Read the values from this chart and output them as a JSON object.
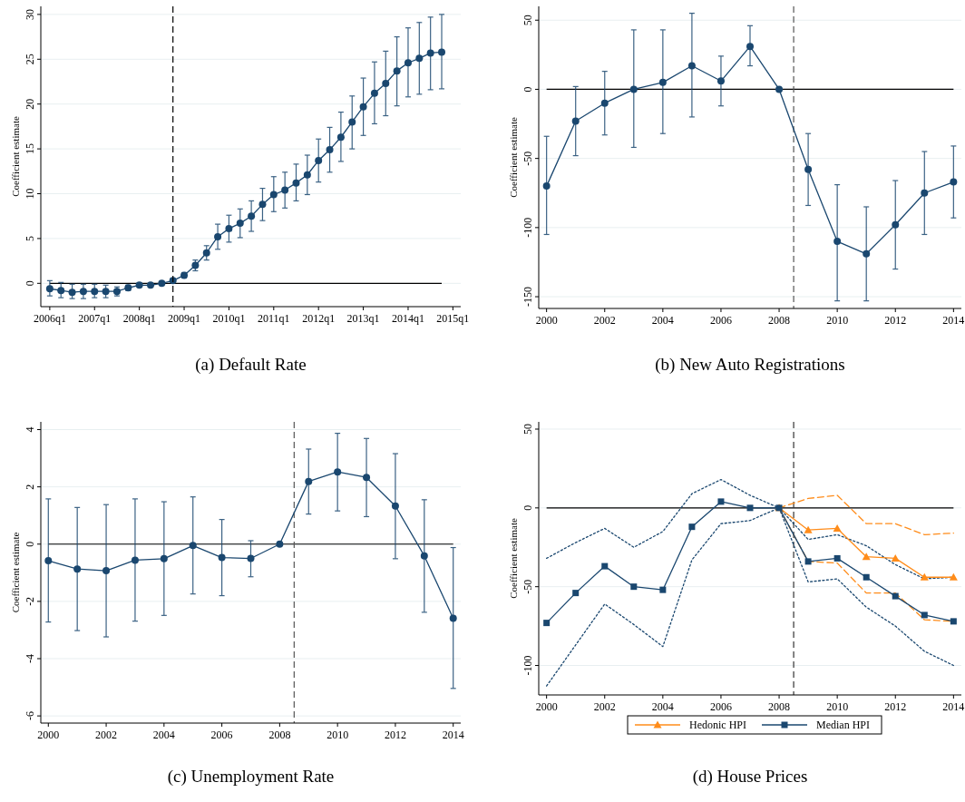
{
  "chart_data": [
    {
      "type": "line",
      "title": "(a) Default Rate",
      "ylabel": "Coefficient estimate",
      "marker": "circle",
      "grid": "y",
      "categories": [
        "2006q1",
        null,
        null,
        null,
        "2007q1",
        null,
        null,
        null,
        "2008q1",
        null,
        null,
        null,
        "2009q1",
        null,
        null,
        null,
        "2010q1",
        null,
        null,
        null,
        "2011q1",
        null,
        null,
        null,
        "2012q1",
        null,
        null,
        null,
        "2013q1",
        null,
        null,
        null,
        "2014q1",
        null,
        null,
        null,
        "2015q1"
      ],
      "series": [
        {
          "color": "#1a476f",
          "values": [
            -0.6,
            -0.8,
            -1.0,
            -0.9,
            -0.9,
            -0.9,
            -0.9,
            -0.5,
            -0.2,
            -0.2,
            0,
            0.3,
            0.9,
            2.0,
            3.4,
            5.2,
            6.1,
            6.7,
            7.5,
            8.8,
            9.9,
            10.4,
            11.2,
            12.1,
            13.7,
            14.9,
            16.3,
            18.0,
            19.7,
            21.2,
            22.3,
            23.7,
            24.6,
            25.1,
            25.7,
            25.8,
            null
          ],
          "errors": [
            [
              -1.4,
              0.3
            ],
            [
              -1.6,
              0.1
            ],
            [
              -1.7,
              -0.1
            ],
            [
              -1.7,
              -0.1
            ],
            [
              -1.6,
              -0.1
            ],
            [
              -1.6,
              -0.2
            ],
            [
              -1.4,
              -0.4
            ],
            [
              -0.8,
              -0.2
            ],
            [
              -0.4,
              0
            ],
            [
              -0.3,
              -0.1
            ],
            null,
            [
              0.1,
              0.5
            ],
            [
              0.6,
              1.2
            ],
            [
              1.4,
              2.6
            ],
            [
              2.6,
              4.2
            ],
            [
              3.8,
              6.6
            ],
            [
              4.6,
              7.6
            ],
            [
              5.1,
              8.3
            ],
            [
              5.8,
              9.2
            ],
            [
              7.0,
              10.6
            ],
            [
              8.0,
              11.9
            ],
            [
              8.4,
              12.4
            ],
            [
              9.2,
              13.3
            ],
            [
              9.9,
              14.3
            ],
            [
              11.3,
              16.1
            ],
            [
              12.4,
              17.4
            ],
            [
              13.6,
              19.1
            ],
            [
              15.0,
              20.9
            ],
            [
              16.5,
              22.9
            ],
            [
              17.8,
              24.7
            ],
            [
              18.7,
              25.9
            ],
            [
              19.8,
              27.5
            ],
            [
              20.8,
              28.5
            ],
            [
              21.1,
              29.1
            ],
            [
              21.6,
              29.7
            ],
            [
              21.7,
              30.0
            ],
            null
          ]
        }
      ],
      "ylim": [
        -2.6,
        30.9
      ],
      "yticks": [
        0,
        5,
        10,
        15,
        20,
        25,
        30
      ],
      "ref_lines": [
        {
          "axis": "y",
          "value": 0,
          "color": "#000000",
          "line_style": "solid"
        }
      ]
    },
    {
      "type": "line",
      "title": "(b) New Auto Registrations",
      "ylabel": "Coefficient estimate",
      "marker": "circle",
      "grid": "y",
      "x": [
        2000,
        2001,
        2002,
        2003,
        2004,
        2005,
        2006,
        2007,
        2008,
        2009,
        2010,
        2011,
        2012,
        2013,
        2014
      ],
      "series": [
        {
          "color": "#1a476f",
          "values": [
            -70,
            -23,
            -10,
            0,
            5,
            17,
            6,
            31,
            0,
            -58,
            -110,
            -119,
            -98,
            -75,
            -67
          ],
          "errors": [
            [
              -105,
              -34
            ],
            [
              -48,
              2
            ],
            [
              -33,
              13
            ],
            [
              -42,
              43
            ],
            [
              -32,
              43
            ],
            [
              -20,
              55
            ],
            [
              -12,
              24
            ],
            [
              17,
              46
            ],
            null,
            [
              -84,
              -32
            ],
            [
              -153,
              -69
            ],
            [
              -153,
              -85
            ],
            [
              -130,
              -66
            ],
            [
              -105,
              -45
            ],
            [
              -93,
              -41
            ]
          ]
        }
      ],
      "xlim": [
        1999.73,
        2014.27
      ],
      "ylim": [
        -158.5,
        60
      ],
      "xticks": [
        2000,
        2002,
        2004,
        2006,
        2008,
        2010,
        2012,
        2014
      ],
      "yticks": [
        -150,
        -100,
        -50,
        0,
        50
      ],
      "ref_lines": [
        {
          "axis": "y",
          "value": 0,
          "color": "#000000",
          "line_style": "solid"
        },
        {
          "axis": "x",
          "value": 2008.5,
          "color": "#555555",
          "line_style": "dashed"
        }
      ]
    },
    {
      "type": "line",
      "title": "(c) Unemployment Rate",
      "ylabel": "Coefficient estimate",
      "marker": "circle",
      "grid": "y",
      "x": [
        2000,
        2001,
        2002,
        2003,
        2004,
        2005,
        2006,
        2007,
        2008,
        2009,
        2010,
        2011,
        2012,
        2013,
        2014
      ],
      "series": [
        {
          "color": "#1a476f",
          "values": [
            -0.58,
            -0.87,
            -0.93,
            -0.56,
            -0.51,
            -0.05,
            -0.47,
            -0.5,
            0,
            2.19,
            2.52,
            2.33,
            1.33,
            -0.41,
            -2.59
          ],
          "errors": [
            [
              -2.72,
              1.58
            ],
            [
              -3.02,
              1.28
            ],
            [
              -3.24,
              1.38
            ],
            [
              -2.69,
              1.58
            ],
            [
              -2.49,
              1.48
            ],
            [
              -1.74,
              1.65
            ],
            [
              -1.8,
              0.86
            ],
            [
              -1.14,
              0.12
            ],
            null,
            [
              1.05,
              3.32
            ],
            [
              1.16,
              3.87
            ],
            [
              0.96,
              3.69
            ],
            [
              -0.51,
              3.16
            ],
            [
              -2.38,
              1.55
            ],
            [
              -5.04,
              -0.12
            ]
          ]
        }
      ],
      "xlim": [
        1999.74,
        2014.26
      ],
      "ylim": [
        -6.25,
        4.27
      ],
      "xticks": [
        2000,
        2002,
        2004,
        2006,
        2008,
        2010,
        2012,
        2014
      ],
      "yticks": [
        -6,
        -4,
        -2,
        0,
        2,
        4
      ],
      "ref_lines": [
        {
          "axis": "y",
          "value": 0,
          "color": "#000000",
          "line_style": "solid"
        },
        {
          "axis": "x",
          "value": 2008.5,
          "color": "#555555",
          "line_style": "dashed"
        }
      ]
    },
    {
      "type": "line",
      "title": "(d) House Prices",
      "ylabel": "Coefficient estimate",
      "grid": "y",
      "legend": "bottom",
      "x": [
        2000,
        2001,
        2002,
        2003,
        2004,
        2005,
        2006,
        2007,
        2008,
        2009,
        2010,
        2011,
        2012,
        2013,
        2014
      ],
      "series": [
        {
          "color": "#1a476f",
          "marker": "none",
          "line_style": "dotted",
          "values": [
            -32,
            -22,
            -13,
            -25,
            -15,
            9,
            18,
            8,
            0,
            -20,
            -17,
            -24,
            -36,
            -45,
            -44
          ]
        },
        {
          "color": "#1a476f",
          "marker": "none",
          "line_style": "dotted",
          "values": [
            -113,
            -87,
            -61,
            -74,
            -88,
            -33,
            -10,
            -8,
            0,
            -47,
            -45,
            -63,
            -75,
            -91,
            -100
          ]
        },
        {
          "color": "#ff8c1a",
          "marker": "none",
          "line_style": "dashed",
          "x": [
            2008,
            2009,
            2010,
            2011,
            2012,
            2013,
            2014
          ],
          "values": [
            0,
            6,
            8,
            -10,
            -10,
            -17,
            -16
          ]
        },
        {
          "color": "#ff8c1a",
          "marker": "none",
          "line_style": "dashed",
          "x": [
            2008,
            2009,
            2010,
            2011,
            2012,
            2013,
            2014
          ],
          "values": [
            0,
            -34,
            -35,
            -54,
            -54,
            -71,
            -72
          ]
        },
        {
          "name": "Hedonic HPI",
          "color": "#ff8c1a",
          "marker": "triangle",
          "line_style": "solid",
          "x": [
            2008,
            2009,
            2010,
            2011,
            2012,
            2013,
            2014
          ],
          "values": [
            0,
            -14,
            -13,
            -31,
            -32,
            -44,
            -44
          ]
        },
        {
          "name": "Median HPI",
          "color": "#1a476f",
          "marker": "square",
          "line_style": "solid",
          "values": [
            -73,
            -54,
            -37,
            -50,
            -52,
            -12,
            4,
            0,
            0,
            -34,
            -32,
            -44,
            -56,
            -68,
            -72
          ]
        }
      ],
      "xlim": [
        1999.73,
        2014.27
      ],
      "ylim": [
        -118.7,
        54.6
      ],
      "xticks": [
        2000,
        2002,
        2004,
        2006,
        2008,
        2010,
        2012,
        2014
      ],
      "yticks": [
        -100,
        -50,
        0,
        50
      ],
      "ref_lines": [
        {
          "axis": "y",
          "value": 0,
          "color": "#000000",
          "line_style": "solid"
        },
        {
          "axis": "x",
          "value": 2008.5,
          "color": "#333333",
          "line_style": "dashed"
        }
      ]
    }
  ]
}
